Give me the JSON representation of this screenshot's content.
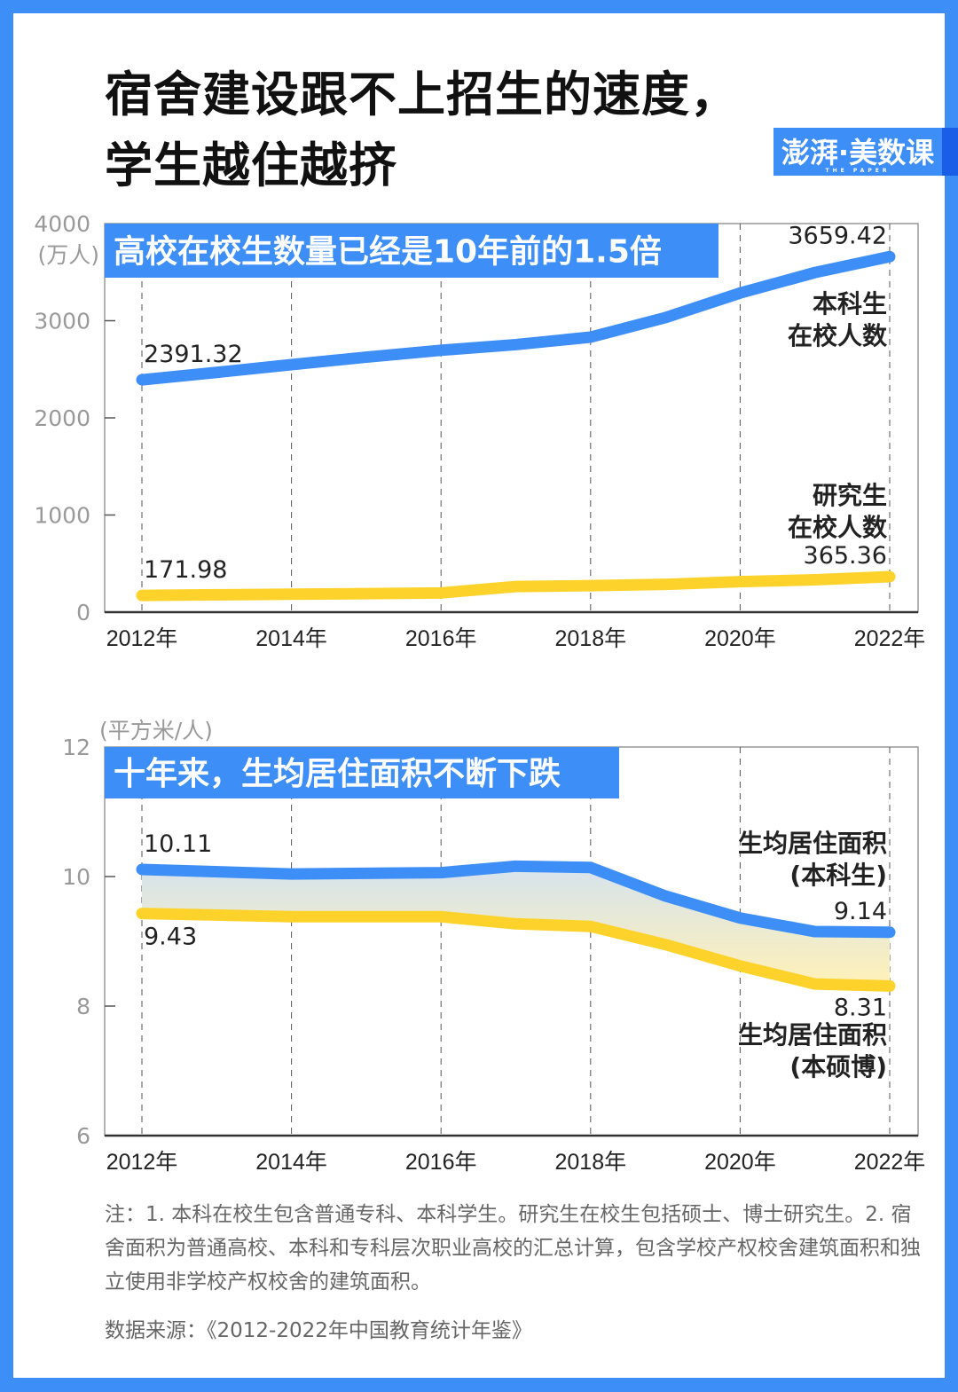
{
  "title": {
    "line1": "宿舍建设跟不上招生的速度，",
    "line2": "学生越住越挤"
  },
  "logo": {
    "text": "澎湃·美数课",
    "sub": "THE PAPER"
  },
  "colors": {
    "frame": "#3e8ef7",
    "blue_series": "#3e8ef7",
    "yellow_series": "#fdd32b",
    "banner": "#3e8ef7"
  },
  "chart_data": [
    {
      "type": "line",
      "title": "高校在校生数量已经是10年前的1.5倍",
      "ylabel": "(万人)",
      "ylim": [
        0,
        4000
      ],
      "yticks": [
        "0",
        "1000",
        "2000",
        "3000",
        "4000"
      ],
      "xticks": [
        "2012年",
        "2014年",
        "2016年",
        "2018年",
        "2020年",
        "2022年"
      ],
      "x": [
        2012,
        2013,
        2014,
        2015,
        2016,
        2017,
        2018,
        2019,
        2020,
        2021,
        2022
      ],
      "series": [
        {
          "name": "本科生在校人数",
          "name_lines": [
            "本科生",
            "在校人数"
          ],
          "color": "#3e8ef7",
          "values": [
            2391.32,
            2468,
            2548,
            2625,
            2696,
            2754,
            2831,
            3032,
            3285,
            3496,
            3659.42
          ],
          "start_label": "2391.32",
          "end_label": "3659.42"
        },
        {
          "name": "研究生在校人数",
          "name_lines": [
            "研究生",
            "在校人数"
          ],
          "color": "#fdd32b",
          "values": [
            171.98,
            179,
            185,
            191,
            198,
            264,
            273,
            286,
            314,
            333,
            365.36
          ],
          "start_label": "171.98",
          "end_label": "365.36"
        }
      ],
      "grid": "vertical dashed"
    },
    {
      "type": "area",
      "title": "十年来，生均居住面积不断下跌",
      "ylabel": "(平方米/人)",
      "ylim": [
        6,
        12
      ],
      "yticks": [
        "6",
        "8",
        "10",
        "12"
      ],
      "xticks": [
        "2012年",
        "2014年",
        "2016年",
        "2018年",
        "2020年",
        "2022年"
      ],
      "x": [
        2012,
        2014,
        2016,
        2017,
        2018,
        2019,
        2020,
        2021,
        2022
      ],
      "series": [
        {
          "name": "生均居住面积(本科生)",
          "name_lines": [
            "生均居住面积",
            "(本科生)"
          ],
          "color": "#3e8ef7",
          "values": [
            10.11,
            10.04,
            10.06,
            10.16,
            10.14,
            9.7,
            9.36,
            9.15,
            9.14
          ],
          "start_label": "10.11",
          "end_label": "9.14"
        },
        {
          "name": "生均居住面积(本硕博)",
          "name_lines": [
            "生均居住面积",
            "(本硕博)"
          ],
          "color": "#fdd32b",
          "values": [
            9.43,
            9.38,
            9.38,
            9.27,
            9.23,
            8.95,
            8.62,
            8.34,
            8.31
          ],
          "start_label": "9.43",
          "end_label": "8.31"
        }
      ],
      "grid": "vertical dashed"
    }
  ],
  "note": "注：1. 本科在校生包含普通专科、本科学生。研究生在校生包括硕士、博士研究生。2. 宿舍面积为普通高校、本科和专科层次职业高校的汇总计算，包含学校产权校舍建筑面积和独立使用非学校产权校舍的建筑面积。",
  "source": "数据来源：《2012-2022年中国教育统计年鉴》"
}
